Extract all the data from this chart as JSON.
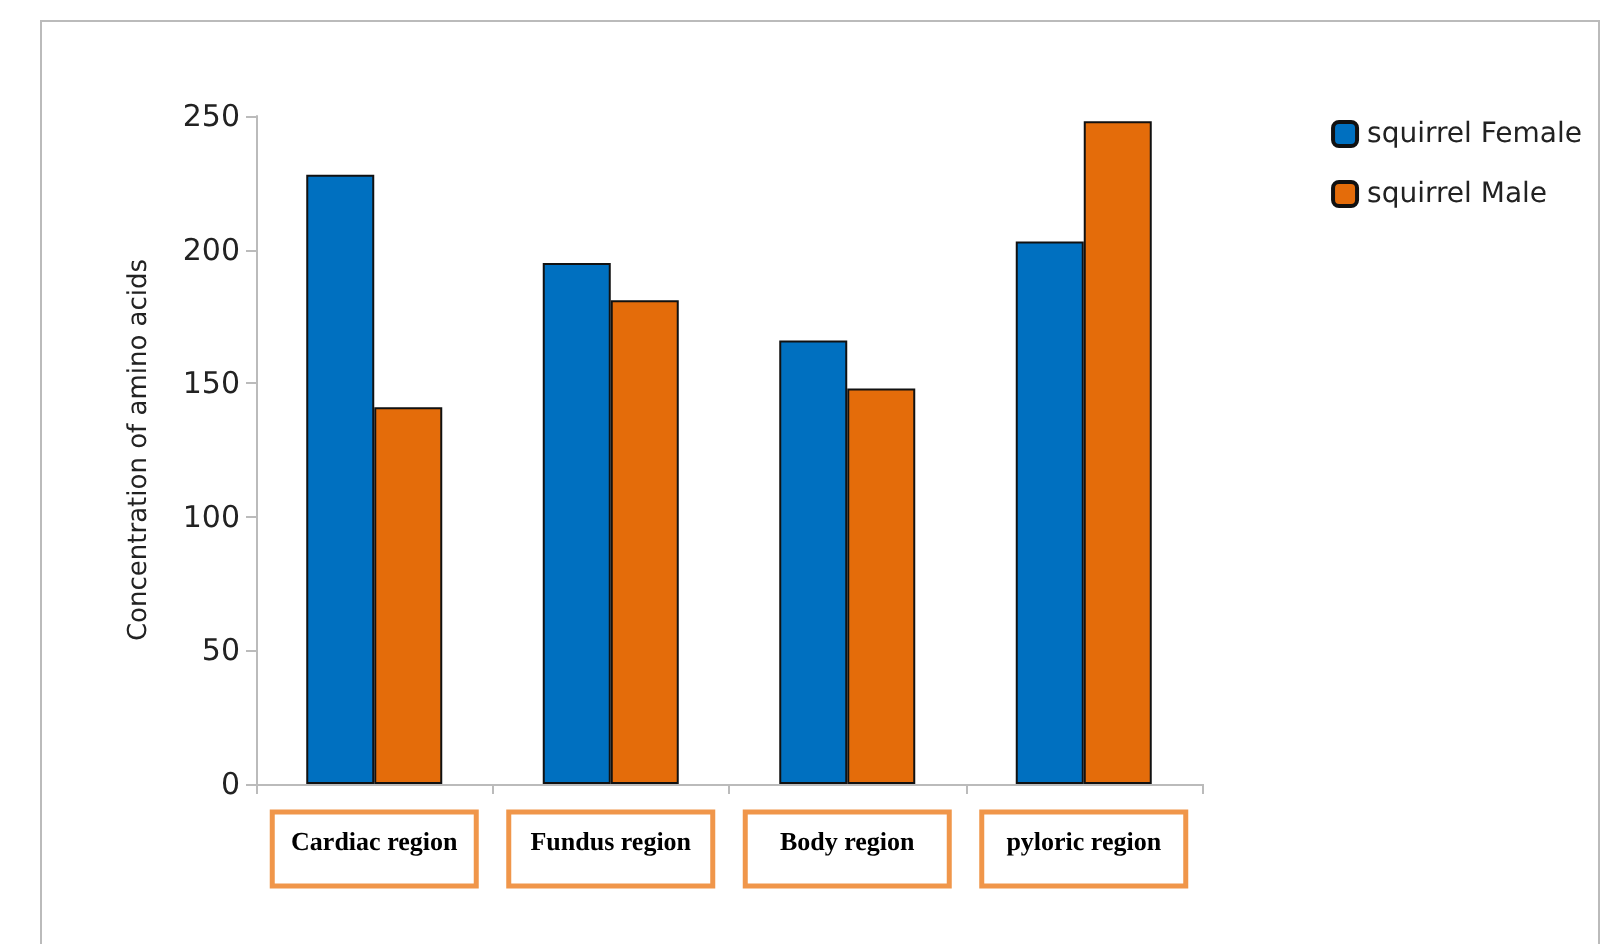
{
  "chart_data": {
    "type": "bar",
    "ylabel": "Concentration of amino acids",
    "categories": [
      "Cardiac region",
      "Fundus region",
      "Body region",
      "pyloric region"
    ],
    "series": [
      {
        "name": "squirrel Female",
        "color": "#0070c0",
        "values": [
          228,
          195,
          166,
          203
        ]
      },
      {
        "name": "squirrel Male",
        "color": "#e46c0a",
        "values": [
          141,
          181,
          148,
          248
        ]
      }
    ],
    "ylim": [
      0,
      250
    ],
    "yticks": [
      0,
      50,
      100,
      150,
      200,
      250
    ],
    "grid": false,
    "legend": "top right"
  }
}
